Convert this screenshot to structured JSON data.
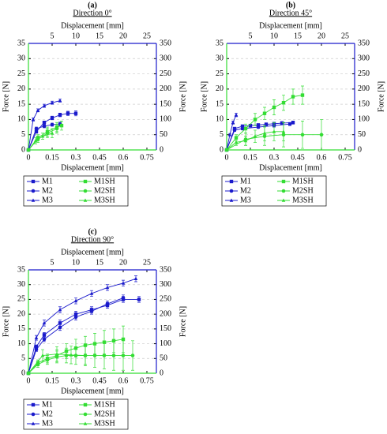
{
  "chart_data": [
    {
      "type": "line",
      "title": "(a)",
      "subtitle": "Direction 0°",
      "xlabel": "Displacement [mm]",
      "x2label": "Displacement [mm]",
      "ylabel": "Force [N]",
      "y2label": "Force [N]",
      "xlim": [
        0,
        0.81
      ],
      "xticks": [
        0,
        0.15,
        0.3,
        0.45,
        0.6,
        0.75
      ],
      "x2lim": [
        0,
        27
      ],
      "x2ticks": [
        5,
        10,
        15,
        20,
        25
      ],
      "ylim": [
        0,
        35
      ],
      "yticks": [
        0,
        5,
        10,
        15,
        20,
        25,
        30,
        35
      ],
      "y2lim": [
        0,
        350
      ],
      "y2ticks": [
        0,
        50,
        100,
        150,
        200,
        250,
        300,
        350
      ],
      "grid": true,
      "series": [
        {
          "name": "M1",
          "color": "#1a1acc",
          "marker": "square",
          "x": [
            0,
            0.05,
            0.1,
            0.15,
            0.2,
            0.25,
            0.3
          ],
          "values": [
            0,
            6,
            9,
            10.5,
            11.5,
            12,
            12
          ],
          "errors": [
            0,
            0.5,
            0.5,
            0.6,
            0.6,
            0.7,
            0.8
          ]
        },
        {
          "name": "M2",
          "color": "#1a1acc",
          "marker": "circle",
          "x": [
            0,
            0.05,
            0.1,
            0.15,
            0.2
          ],
          "values": [
            0,
            7,
            7.8,
            8.3,
            8.5
          ],
          "errors": [
            0,
            0.5,
            0.5,
            0.5,
            0.6
          ]
        },
        {
          "name": "M3",
          "color": "#1a1acc",
          "marker": "triangle",
          "x": [
            0,
            0.03,
            0.06,
            0.1,
            0.15,
            0.2
          ],
          "values": [
            0,
            10,
            13,
            14.5,
            15.5,
            16.2
          ],
          "errors": [
            0,
            0.5,
            0.5,
            0.5,
            0.5,
            0.5
          ]
        },
        {
          "name": "M1SH",
          "color": "#33dd33",
          "marker": "square",
          "axis": "y2",
          "x": [
            0,
            2,
            4,
            6,
            7
          ],
          "values": [
            0,
            40,
            60,
            75,
            80
          ],
          "errors": [
            0,
            10,
            15,
            15,
            15
          ]
        },
        {
          "name": "M2SH",
          "color": "#33dd33",
          "marker": "circle",
          "axis": "y2",
          "x": [
            0,
            2,
            4,
            6
          ],
          "values": [
            0,
            35,
            55,
            70
          ],
          "errors": [
            0,
            10,
            15,
            15
          ]
        },
        {
          "name": "M3SH",
          "color": "#33dd33",
          "marker": "triangle",
          "axis": "y2",
          "x": [
            0,
            1.5,
            3,
            5
          ],
          "values": [
            0,
            30,
            45,
            55
          ],
          "errors": [
            0,
            10,
            10,
            15
          ]
        }
      ]
    },
    {
      "type": "line",
      "title": "(b)",
      "subtitle": "Direction 45°",
      "xlabel": "Displacement [mm]",
      "x2label": "Displacement [mm]",
      "ylabel": "Force [N]",
      "y2label": "Force [N]",
      "xlim": [
        0,
        0.81
      ],
      "xticks": [
        0,
        0.15,
        0.3,
        0.45,
        0.6,
        0.75
      ],
      "x2lim": [
        0,
        27
      ],
      "x2ticks": [
        5,
        10,
        15,
        20,
        25
      ],
      "ylim": [
        0,
        35
      ],
      "yticks": [
        0,
        5,
        10,
        15,
        20,
        25,
        30,
        35
      ],
      "y2lim": [
        0,
        350
      ],
      "y2ticks": [
        0,
        50,
        100,
        150,
        200,
        250,
        300,
        350
      ],
      "grid": true,
      "series": [
        {
          "name": "M1",
          "color": "#1a1acc",
          "marker": "square",
          "x": [
            0,
            0.05,
            0.1,
            0.15,
            0.2,
            0.25,
            0.3,
            0.35,
            0.42
          ],
          "values": [
            0,
            7,
            7.8,
            8,
            8.2,
            8.4,
            8.6,
            8.8,
            9
          ],
          "errors": [
            0,
            0.4,
            0.4,
            0.4,
            0.4,
            0.5,
            0.5,
            0.5,
            0.5
          ]
        },
        {
          "name": "M2",
          "color": "#1a1acc",
          "marker": "circle",
          "x": [
            0,
            0.05,
            0.1,
            0.2,
            0.3,
            0.4
          ],
          "values": [
            0,
            6.5,
            7,
            7.5,
            8,
            8.5
          ],
          "errors": [
            0,
            0.4,
            0.4,
            0.4,
            0.5,
            0.5
          ]
        },
        {
          "name": "M3",
          "color": "#1a1acc",
          "marker": "triangle",
          "x": [
            0,
            0.02,
            0.04,
            0.06
          ],
          "values": [
            0,
            5,
            9,
            11.5
          ],
          "errors": [
            0,
            0.4,
            0.5,
            0.6
          ]
        },
        {
          "name": "M1SH",
          "color": "#33dd33",
          "marker": "square",
          "axis": "y2",
          "x": [
            0,
            2,
            4,
            6,
            8,
            10,
            12,
            14,
            16
          ],
          "values": [
            0,
            40,
            70,
            100,
            120,
            140,
            155,
            175,
            180
          ],
          "errors": [
            0,
            10,
            15,
            20,
            20,
            25,
            25,
            25,
            30
          ]
        },
        {
          "name": "M2SH",
          "color": "#33dd33",
          "marker": "circle",
          "axis": "y2",
          "x": [
            0,
            4,
            8,
            12,
            16,
            20
          ],
          "values": [
            0,
            35,
            45,
            50,
            50,
            50
          ],
          "errors": [
            0,
            20,
            30,
            40,
            45,
            50
          ]
        },
        {
          "name": "M3SH",
          "color": "#33dd33",
          "marker": "triangle",
          "axis": "y2",
          "x": [
            0,
            2,
            4,
            6,
            8,
            10,
            12
          ],
          "values": [
            0,
            25,
            30,
            45,
            55,
            60,
            60
          ],
          "errors": [
            0,
            10,
            15,
            20,
            25,
            30,
            30
          ]
        }
      ]
    },
    {
      "type": "line",
      "title": "(c)",
      "subtitle": "Direction 90°",
      "xlabel": "Displacement [mm]",
      "x2label": "Displacement [mm]",
      "ylabel": "Force [N]",
      "y2label": "Force [N]",
      "xlim": [
        0,
        0.81
      ],
      "xticks": [
        0,
        0.15,
        0.3,
        0.45,
        0.6,
        0.75
      ],
      "x2lim": [
        0,
        27
      ],
      "x2ticks": [
        5,
        10,
        15,
        20,
        25
      ],
      "ylim": [
        0,
        35
      ],
      "yticks": [
        0,
        5,
        10,
        15,
        20,
        25,
        30,
        35
      ],
      "y2lim": [
        0,
        350
      ],
      "y2ticks": [
        0,
        50,
        100,
        150,
        200,
        250,
        300,
        350
      ],
      "grid": true,
      "series": [
        {
          "name": "M1",
          "color": "#1a1acc",
          "marker": "square",
          "x": [
            0,
            0.05,
            0.1,
            0.2,
            0.3,
            0.4,
            0.5,
            0.6,
            0.7
          ],
          "values": [
            0,
            9,
            13,
            17,
            20,
            21.5,
            23,
            25,
            25
          ],
          "errors": [
            0,
            0.6,
            0.8,
            1,
            1,
            1,
            1,
            1,
            1
          ]
        },
        {
          "name": "M2",
          "color": "#1a1acc",
          "marker": "circle",
          "x": [
            0,
            0.05,
            0.1,
            0.2,
            0.3,
            0.4,
            0.5,
            0.6
          ],
          "values": [
            0,
            8,
            11.5,
            15.5,
            19,
            21,
            23.5,
            25.5
          ],
          "errors": [
            0,
            0.6,
            0.8,
            1,
            1,
            1,
            1,
            1
          ]
        },
        {
          "name": "M3",
          "color": "#1a1acc",
          "marker": "triangle",
          "x": [
            0,
            0.05,
            0.1,
            0.2,
            0.3,
            0.4,
            0.5,
            0.6,
            0.68
          ],
          "values": [
            0,
            12,
            17,
            21.5,
            24.5,
            27,
            29,
            30.5,
            32
          ],
          "errors": [
            0,
            0.8,
            1,
            1,
            1,
            1,
            1,
            1,
            1
          ]
        },
        {
          "name": "M1SH",
          "color": "#33dd33",
          "marker": "square",
          "axis": "y2",
          "x": [
            0,
            2,
            4,
            6,
            8,
            10,
            12,
            14,
            16,
            18,
            20
          ],
          "values": [
            0,
            35,
            50,
            60,
            75,
            85,
            95,
            100,
            105,
            110,
            115
          ],
          "errors": [
            0,
            10,
            15,
            20,
            25,
            30,
            30,
            35,
            40,
            40,
            45
          ]
        },
        {
          "name": "M2SH",
          "color": "#33dd33",
          "marker": "circle",
          "axis": "y2",
          "x": [
            0,
            2,
            4,
            6,
            8,
            10,
            12,
            14,
            16,
            18,
            20,
            22
          ],
          "values": [
            0,
            30,
            45,
            55,
            60,
            60,
            60,
            60,
            60,
            60,
            60,
            60
          ],
          "errors": [
            0,
            10,
            15,
            20,
            25,
            30,
            35,
            40,
            45,
            50,
            50,
            50
          ]
        },
        {
          "name": "M3SH",
          "color": "#33dd33",
          "marker": "triangle",
          "axis": "y2",
          "x": [
            0,
            3,
            6,
            9,
            12
          ],
          "values": [
            0,
            60,
            65,
            62,
            60
          ],
          "errors": [
            0,
            20,
            25,
            30,
            30
          ]
        }
      ]
    }
  ]
}
